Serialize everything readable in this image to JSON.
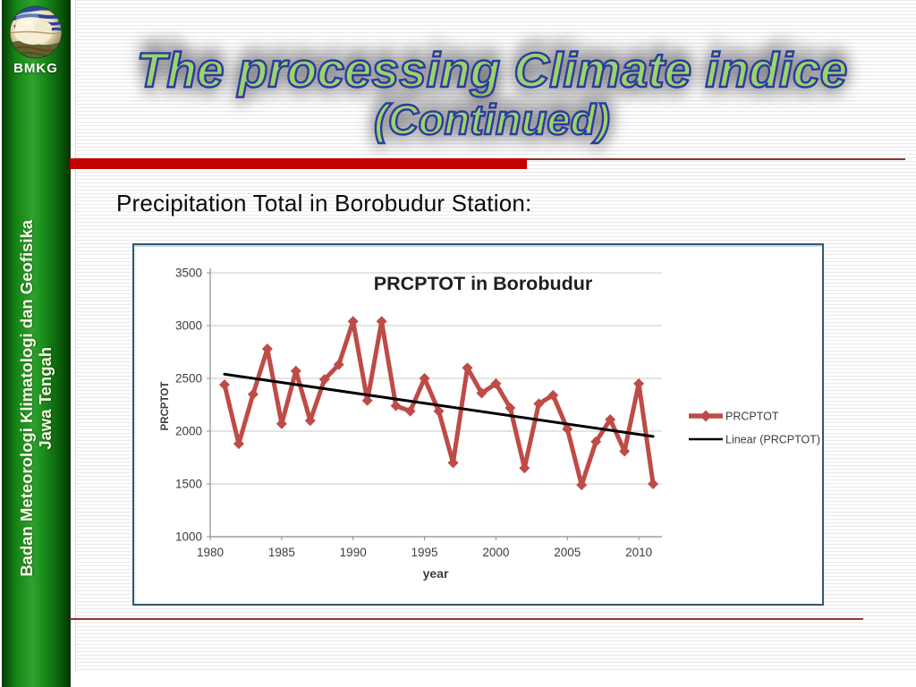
{
  "sidebar": {
    "logo_icon": "bmkg-globe-logo",
    "logo_label": "BMKG",
    "org_line1": "Badan Meteorologi Klimatologi dan Geofisika",
    "org_line2": "Jawa Tengah",
    "green_color": "#1a8c1a",
    "text_color": "#fbfbe8"
  },
  "title": {
    "line1": "The processing Climate indice",
    "line2": "(Continued)",
    "fill_color": "#9cd369",
    "outline_color": "#2c3aa2",
    "shadow_color": "#69696e"
  },
  "subtitle": "Precipitation Total in Borobudur Station:",
  "accents": {
    "thick_bar_color": "#c40000",
    "thin_line_color": "#8d3634"
  },
  "chart_data": {
    "type": "line",
    "title": "PRCPTOT in Borobudur",
    "xlabel": "year",
    "ylabel": "PRCPTOT",
    "ylim": [
      1000,
      3500
    ],
    "yticks": [
      1000,
      1500,
      2000,
      2500,
      3000,
      3500
    ],
    "xticks": [
      1980,
      1985,
      1990,
      1995,
      2000,
      2005,
      2010
    ],
    "grid": "horizontal",
    "legend_position": "right",
    "x": [
      1981,
      1982,
      1983,
      1984,
      1985,
      1986,
      1987,
      1988,
      1989,
      1990,
      1991,
      1992,
      1993,
      1994,
      1995,
      1996,
      1997,
      1998,
      1999,
      2000,
      2001,
      2002,
      2003,
      2004,
      2005,
      2006,
      2007,
      2008,
      2009,
      2010,
      2011
    ],
    "series": [
      {
        "name": "PRCPTOT",
        "type": "line-markers",
        "marker": "diamond",
        "color": "#bf4b47",
        "values": [
          2440,
          1880,
          2350,
          2780,
          2070,
          2570,
          2100,
          2490,
          2630,
          3040,
          2290,
          3040,
          2240,
          2190,
          2500,
          2190,
          1700,
          2600,
          2360,
          2450,
          2220,
          1650,
          2260,
          2340,
          2020,
          1490,
          1900,
          2110,
          1810,
          2450,
          1500
        ]
      },
      {
        "name": "Linear (PRCPTOT)",
        "type": "trendline",
        "color": "#000000",
        "endpoints": [
          [
            1981,
            2540
          ],
          [
            2011,
            1950
          ]
        ]
      }
    ]
  }
}
